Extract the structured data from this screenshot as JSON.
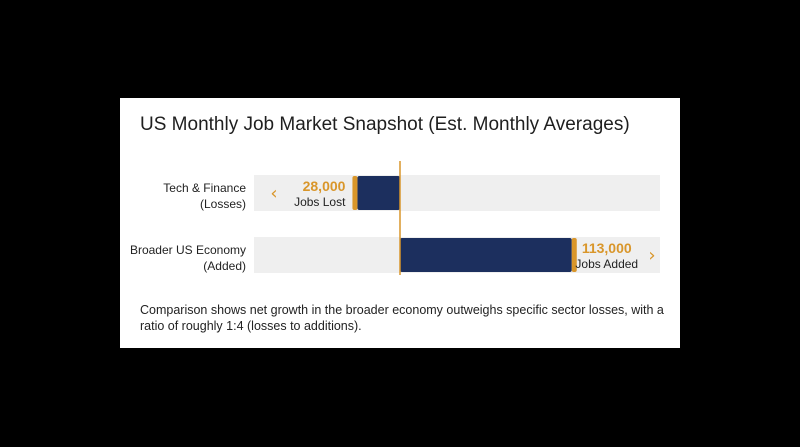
{
  "title": "US Monthly Job Market Snapshot (Est. Monthly Averages)",
  "footnote": "Comparison shows net growth in the broader economy outweighs specific sector losses, with a ratio of roughly 1:4 (losses to additions).",
  "colors": {
    "bar": "#1c2f5e",
    "accent": "#d9962a",
    "track": "#efefef",
    "background": "#ffffff",
    "outer_background": "#000000"
  },
  "chart_data": {
    "type": "bar",
    "orientation": "horizontal",
    "baseline": 0,
    "categories": [
      {
        "line1": "Tech & Finance",
        "line2": "(Losses)"
      },
      {
        "line1": "Broader US Economy",
        "line2": "(Added)"
      }
    ],
    "values": [
      -28000,
      113000
    ],
    "data_labels": [
      {
        "value": "28,000",
        "unit": "Jobs Lost",
        "arrow": "‹"
      },
      {
        "value": "113,000",
        "unit": "Jobs Added",
        "arrow": "›"
      }
    ]
  }
}
